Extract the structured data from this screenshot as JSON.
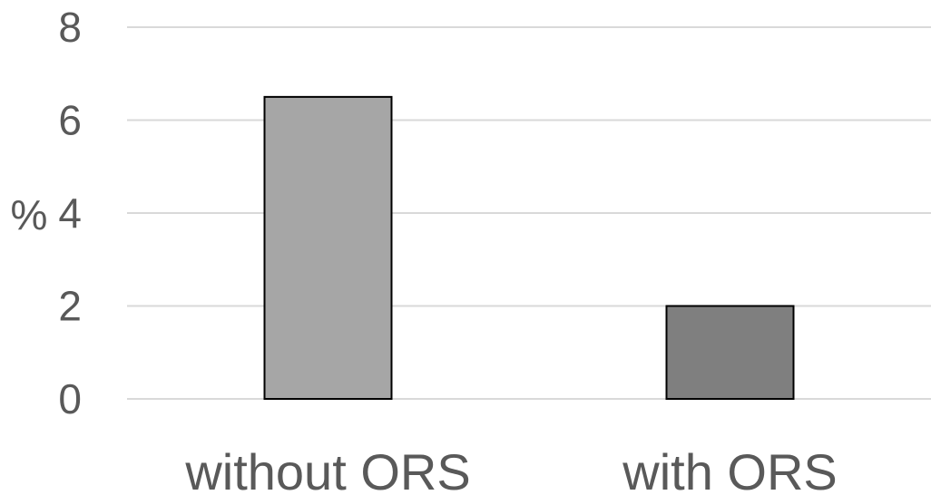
{
  "chart_data": {
    "type": "bar",
    "categories": [
      "without ORS",
      "with ORS"
    ],
    "values": [
      6.5,
      2.0
    ],
    "ylabel": "%",
    "xlabel": "",
    "ylim": [
      0,
      8
    ],
    "yticks": [
      0,
      2,
      4,
      6,
      8
    ],
    "grid": true,
    "legend": "none",
    "colors": {
      "bars": [
        "#a6a6a6",
        "#7f7f7f"
      ],
      "bar_outline": "#000000",
      "grid": "#d9d9d9",
      "text": "#595959"
    }
  }
}
